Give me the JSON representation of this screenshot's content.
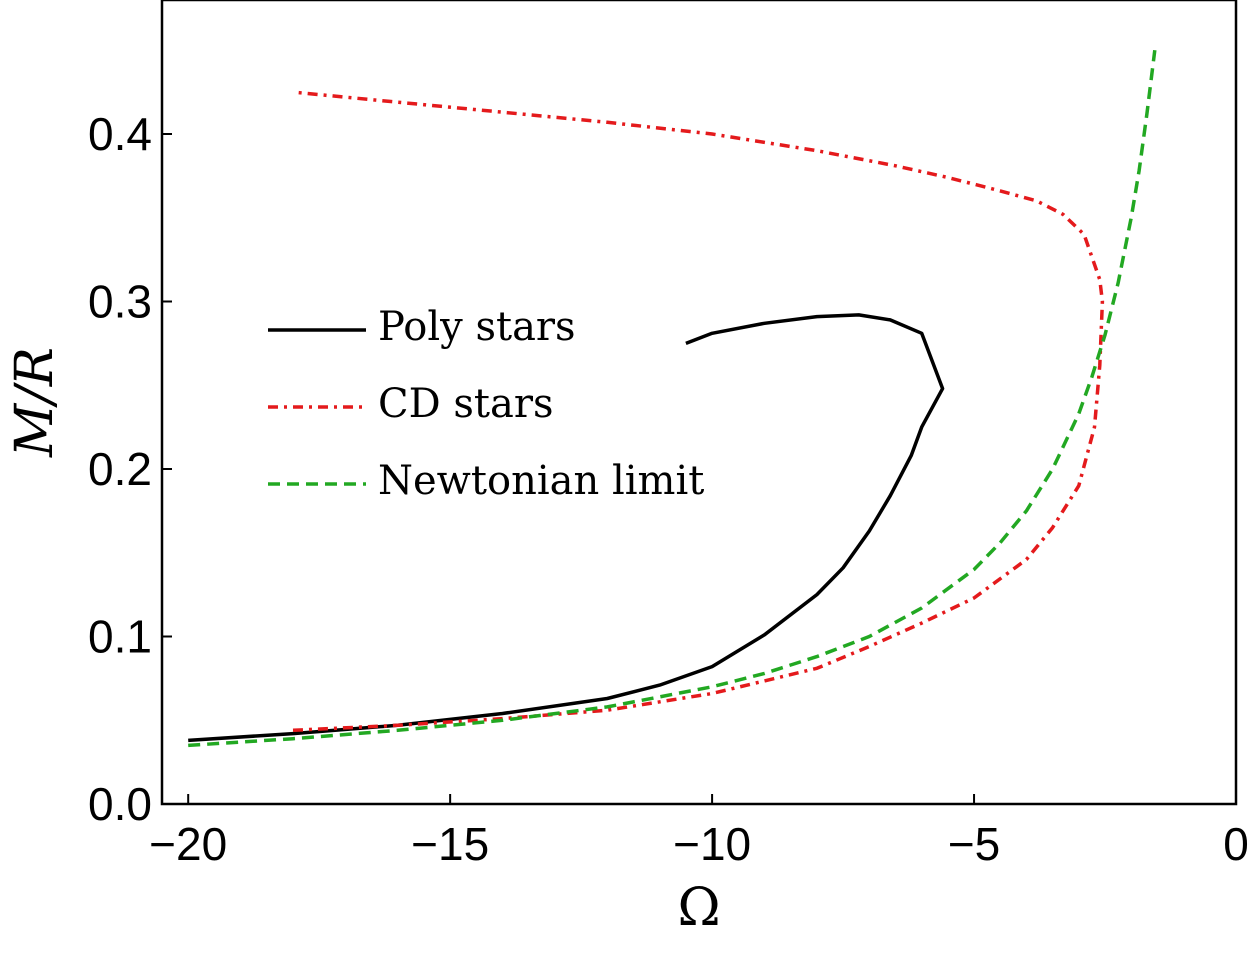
{
  "chart_data": {
    "type": "line",
    "title": "",
    "xlabel": "Ω",
    "ylabel": "M/R",
    "xlim": [
      -20.5,
      0
    ],
    "ylim": [
      0.0,
      0.48
    ],
    "xticks": [
      -20,
      -15,
      -10,
      -5,
      0
    ],
    "xtick_labels": [
      "−20",
      "−15",
      "−10",
      "−5",
      "0"
    ],
    "yticks": [
      0.0,
      0.1,
      0.2,
      0.3,
      0.4
    ],
    "ytick_labels": [
      "0.0",
      "0.1",
      "0.2",
      "0.3",
      "0.4"
    ],
    "grid": false,
    "legend_position": "left",
    "series": [
      {
        "name": "Poly stars",
        "color": "#000000",
        "style": "solid",
        "x": [
          -20,
          -18,
          -16,
          -14,
          -12,
          -11,
          -10,
          -9,
          -8,
          -7.5,
          -7,
          -6.6,
          -6.2,
          -6.0,
          -5.6,
          -6.0,
          -6.6,
          -7.2,
          -8.0,
          -9.0,
          -10.0,
          -10.5
        ],
        "y": [
          0.038,
          0.042,
          0.047,
          0.054,
          0.063,
          0.071,
          0.082,
          0.101,
          0.125,
          0.141,
          0.163,
          0.184,
          0.208,
          0.225,
          0.248,
          0.281,
          0.289,
          0.292,
          0.291,
          0.287,
          0.281,
          0.275
        ]
      },
      {
        "name": "CD stars",
        "color": "#e41a1c",
        "style": "dashdot",
        "x": [
          -18,
          -16,
          -14,
          -12,
          -10,
          -8,
          -7,
          -6,
          -5,
          -4,
          -3.5,
          -3,
          -2.7,
          -2.6,
          -2.55,
          -2.6,
          -2.9,
          -3.3,
          -3.8,
          -4.5,
          -5.5,
          -6.5,
          -8,
          -10,
          -12,
          -14,
          -16,
          -18
        ],
        "y": [
          0.044,
          0.047,
          0.051,
          0.056,
          0.066,
          0.081,
          0.094,
          0.108,
          0.123,
          0.146,
          0.165,
          0.19,
          0.225,
          0.262,
          0.3,
          0.313,
          0.34,
          0.352,
          0.36,
          0.366,
          0.374,
          0.381,
          0.39,
          0.4,
          0.407,
          0.413,
          0.419,
          0.425
        ]
      },
      {
        "name": "Newtonian limit",
        "color": "#22a822",
        "style": "dashed",
        "x": [
          -20,
          -18,
          -16,
          -14,
          -12,
          -10,
          -9,
          -8,
          -7,
          -6,
          -5,
          -4.5,
          -4,
          -3.5,
          -3,
          -2.75,
          -2.5,
          -2.25,
          -2.0,
          -1.85,
          -1.7,
          -1.55
        ],
        "y": [
          0.035,
          0.039,
          0.044,
          0.05,
          0.058,
          0.07,
          0.078,
          0.088,
          0.1,
          0.117,
          0.14,
          0.156,
          0.175,
          0.2,
          0.233,
          0.255,
          0.28,
          0.311,
          0.35,
          0.378,
          0.412,
          0.45
        ]
      }
    ]
  }
}
